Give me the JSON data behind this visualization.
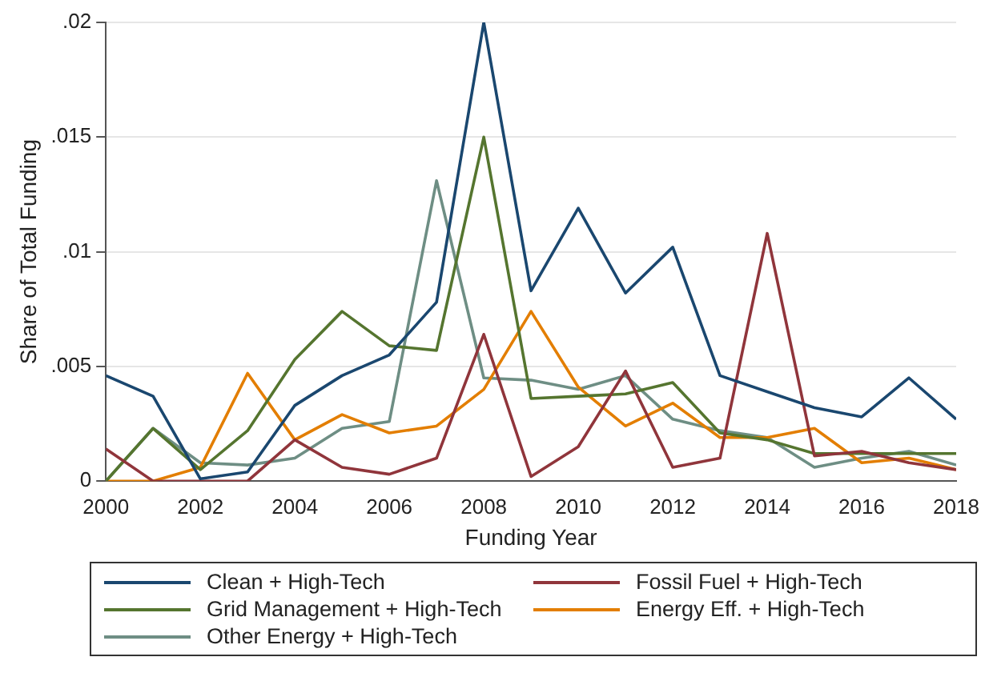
{
  "chart_data": {
    "type": "line",
    "xlabel": "Funding Year",
    "ylabel": "Share of Total Funding",
    "x": [
      2000,
      2001,
      2002,
      2003,
      2004,
      2005,
      2006,
      2007,
      2008,
      2009,
      2010,
      2011,
      2012,
      2013,
      2014,
      2015,
      2016,
      2017,
      2018
    ],
    "xlim": [
      2000,
      2018
    ],
    "xticks": [
      2000,
      2002,
      2004,
      2006,
      2008,
      2010,
      2012,
      2014,
      2016,
      2018
    ],
    "ylim": [
      0,
      0.02
    ],
    "yticks": [
      {
        "value": 0,
        "label": "0"
      },
      {
        "value": 0.005,
        "label": ".005"
      },
      {
        "value": 0.01,
        "label": ".01"
      },
      {
        "value": 0.015,
        "label": ".015"
      },
      {
        "value": 0.02,
        "label": ".02"
      }
    ],
    "grid": "y",
    "legend": "bottom",
    "marker": "none",
    "line_style": "solid",
    "series": [
      {
        "name": "Clean + High-Tech",
        "color": "#1a476f",
        "values": [
          0.0046,
          0.0037,
          0.0001,
          0.0004,
          0.0033,
          0.0046,
          0.0055,
          0.0078,
          0.02,
          0.0083,
          0.0119,
          0.0082,
          0.0102,
          0.0046,
          0.0039,
          0.0032,
          0.0028,
          0.0045,
          0.0027
        ]
      },
      {
        "name": "Fossil Fuel + High-Tech",
        "color": "#90353b",
        "values": [
          0.0014,
          0,
          0,
          0,
          0.0018,
          0.0006,
          0.0003,
          0.001,
          0.0064,
          0.0002,
          0.0015,
          0.0048,
          0.0006,
          0.001,
          0.0108,
          0.0011,
          0.0013,
          0.0008,
          0.0005
        ]
      },
      {
        "name": "Grid Management + High-Tech",
        "color": "#55752f",
        "values": [
          0,
          0.0023,
          0.0005,
          0.0022,
          0.0053,
          0.0074,
          0.0059,
          0.0057,
          0.015,
          0.0036,
          0.0037,
          0.0038,
          0.0043,
          0.0021,
          0.0018,
          0.0012,
          0.0012,
          0.0012,
          0.0012
        ]
      },
      {
        "name": "Energy Eff. + High-Tech",
        "color": "#e37e00",
        "values": [
          0,
          0,
          0.0006,
          0.0047,
          0.0018,
          0.0029,
          0.0021,
          0.0024,
          0.004,
          0.0074,
          0.0041,
          0.0024,
          0.0034,
          0.0019,
          0.0019,
          0.0023,
          0.0008,
          0.001,
          0.0005
        ]
      },
      {
        "name": "Other Energy + High-Tech",
        "color": "#6e8e84",
        "values": [
          0,
          0.0023,
          0.0008,
          0.0007,
          0.001,
          0.0023,
          0.0026,
          0.0131,
          0.0045,
          0.0044,
          0.004,
          0.0046,
          0.0027,
          0.0022,
          0.0019,
          0.0006,
          0.001,
          0.0013,
          0.0007
        ]
      }
    ]
  }
}
